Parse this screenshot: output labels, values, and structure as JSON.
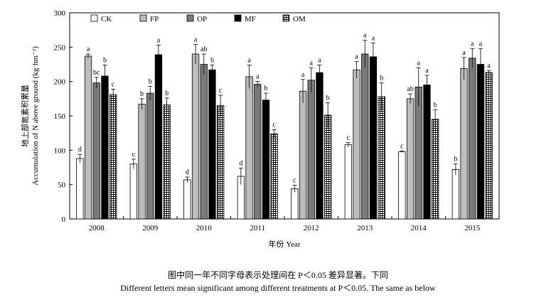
{
  "chart_data": {
    "type": "bar",
    "categories": [
      "2008",
      "2009",
      "2010",
      "2011",
      "2012",
      "2013",
      "2014",
      "2015"
    ],
    "ylabel_zh": "地上部氮素积累量",
    "ylabel_en": "Accumulation of N above ground (kg·hm⁻²)",
    "xlabel": "年份 Year",
    "ylim": [
      0,
      300
    ],
    "yticks": [
      0,
      50,
      100,
      150,
      200,
      250,
      300
    ],
    "legend_position": "top",
    "series": [
      {
        "name": "CK",
        "color": "#ffffff",
        "pattern": "none",
        "values": [
          88,
          80,
          57,
          62,
          44,
          108,
          98,
          72
        ],
        "errors": [
          6,
          7,
          4,
          12,
          5,
          3,
          1,
          8
        ],
        "letters": [
          "d",
          "c",
          "d",
          "d",
          "c",
          "c",
          "c",
          "b"
        ]
      },
      {
        "name": "FP",
        "color": "#bdbdbd",
        "pattern": "none",
        "values": [
          237,
          167,
          240,
          207,
          186,
          217,
          175,
          219
        ],
        "errors": [
          3,
          8,
          14,
          17,
          17,
          12,
          7,
          16
        ],
        "letters": [
          "a",
          "b",
          "a",
          "a",
          "a",
          "a",
          "ab",
          "a"
        ]
      },
      {
        "name": "OP",
        "color": "#7a7a7a",
        "pattern": "none",
        "values": [
          198,
          183,
          225,
          196,
          202,
          240,
          192,
          234
        ],
        "errors": [
          8,
          10,
          15,
          4,
          18,
          20,
          28,
          14
        ],
        "letters": [
          "bc",
          "b",
          "ab",
          "a",
          "a",
          "a",
          "a",
          "a"
        ]
      },
      {
        "name": "MF",
        "color": "#000000",
        "pattern": "none",
        "values": [
          208,
          239,
          217,
          173,
          213,
          236,
          195,
          225
        ],
        "errors": [
          16,
          14,
          7,
          10,
          11,
          20,
          14,
          23
        ],
        "letters": [
          "b",
          "a",
          "b",
          "b",
          "a",
          "a",
          "a",
          "a"
        ]
      },
      {
        "name": "OM",
        "color": "#ffffff",
        "pattern": "grid",
        "values": [
          181,
          166,
          165,
          124,
          151,
          178,
          145,
          213
        ],
        "errors": [
          8,
          10,
          15,
          6,
          18,
          20,
          14,
          3
        ],
        "letters": [
          "c",
          "b",
          "c",
          "c",
          "b",
          "b",
          "b",
          "a"
        ]
      }
    ]
  },
  "captions": {
    "zh": "图中同一年不同字母表示处理间在 P＜0.05 差异显著。下同",
    "en": "Different letters mean significant among different treatments at P＜0.05. The same as below"
  }
}
